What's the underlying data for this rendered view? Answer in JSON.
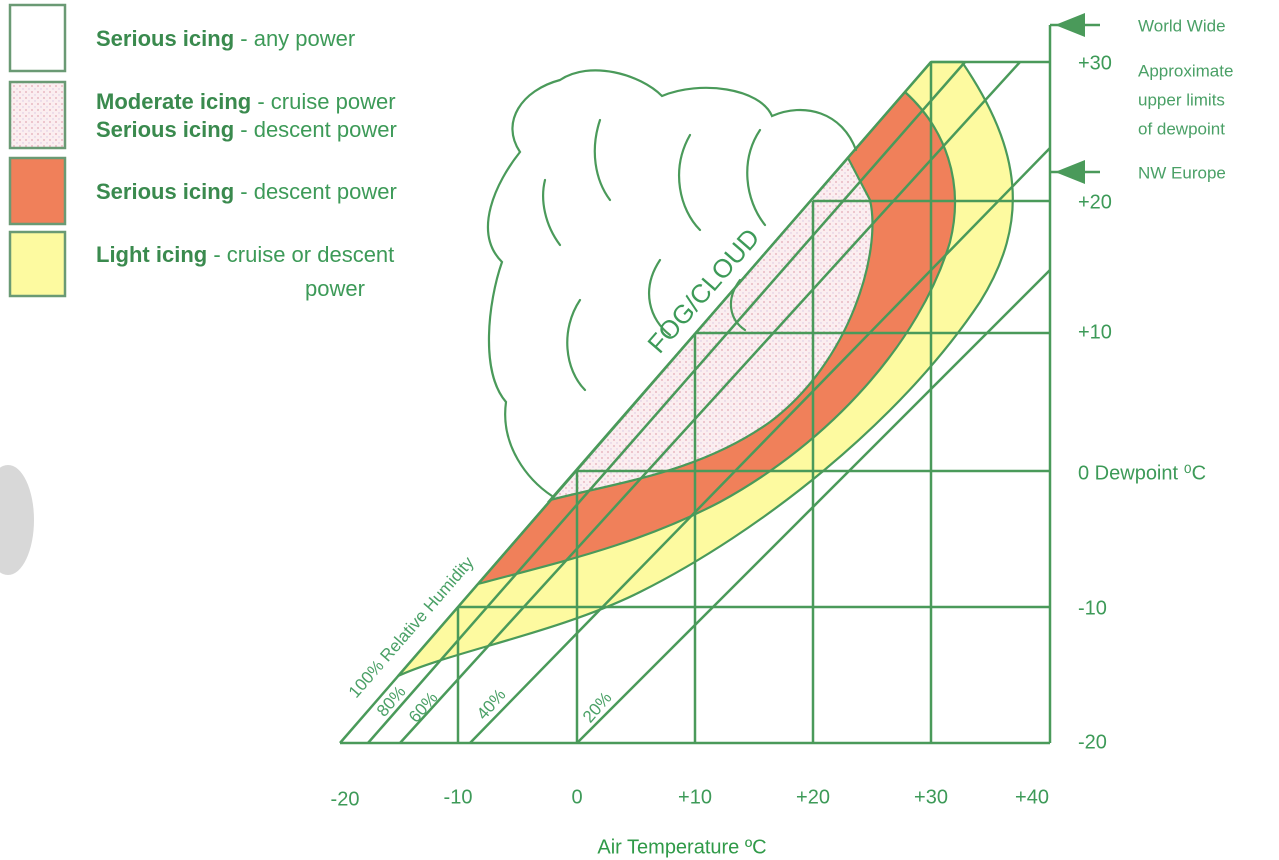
{
  "legend": [
    {
      "lines": [
        {
          "bold": "Serious icing",
          "text": " - any power"
        }
      ]
    },
    {
      "lines": [
        {
          "bold": "Moderate icing",
          "text": " - cruise power"
        },
        {
          "bold": "Serious icing",
          "text": " - descent power"
        }
      ]
    },
    {
      "lines": [
        {
          "bold": "Serious icing",
          "text": " - descent power"
        }
      ]
    },
    {
      "lines": [
        {
          "bold": "Light icing",
          "text": " - cruise or descent"
        },
        {
          "text": "power"
        }
      ]
    }
  ],
  "x_axis": {
    "title": "Air Temperature ºC",
    "ticks": [
      "-20",
      "-10",
      "0",
      "+10",
      "+20",
      "+30",
      "+40"
    ]
  },
  "y_axis": {
    "ticks": [
      "+30",
      "+20",
      "+10",
      "0 Dewpoint ⁰C",
      "-10",
      "-20"
    ]
  },
  "annotations": {
    "world_wide": "World Wide",
    "upper_limits": [
      "Approximate",
      "upper limits",
      "of dewpoint"
    ],
    "nw_europe": "NW Europe",
    "fog_cloud": "FOG/CLOUD",
    "rh_100": "100% Relative Humidity",
    "rh_80": "80%",
    "rh_60": "60%",
    "rh_40": "40%",
    "rh_20": "20%"
  }
}
